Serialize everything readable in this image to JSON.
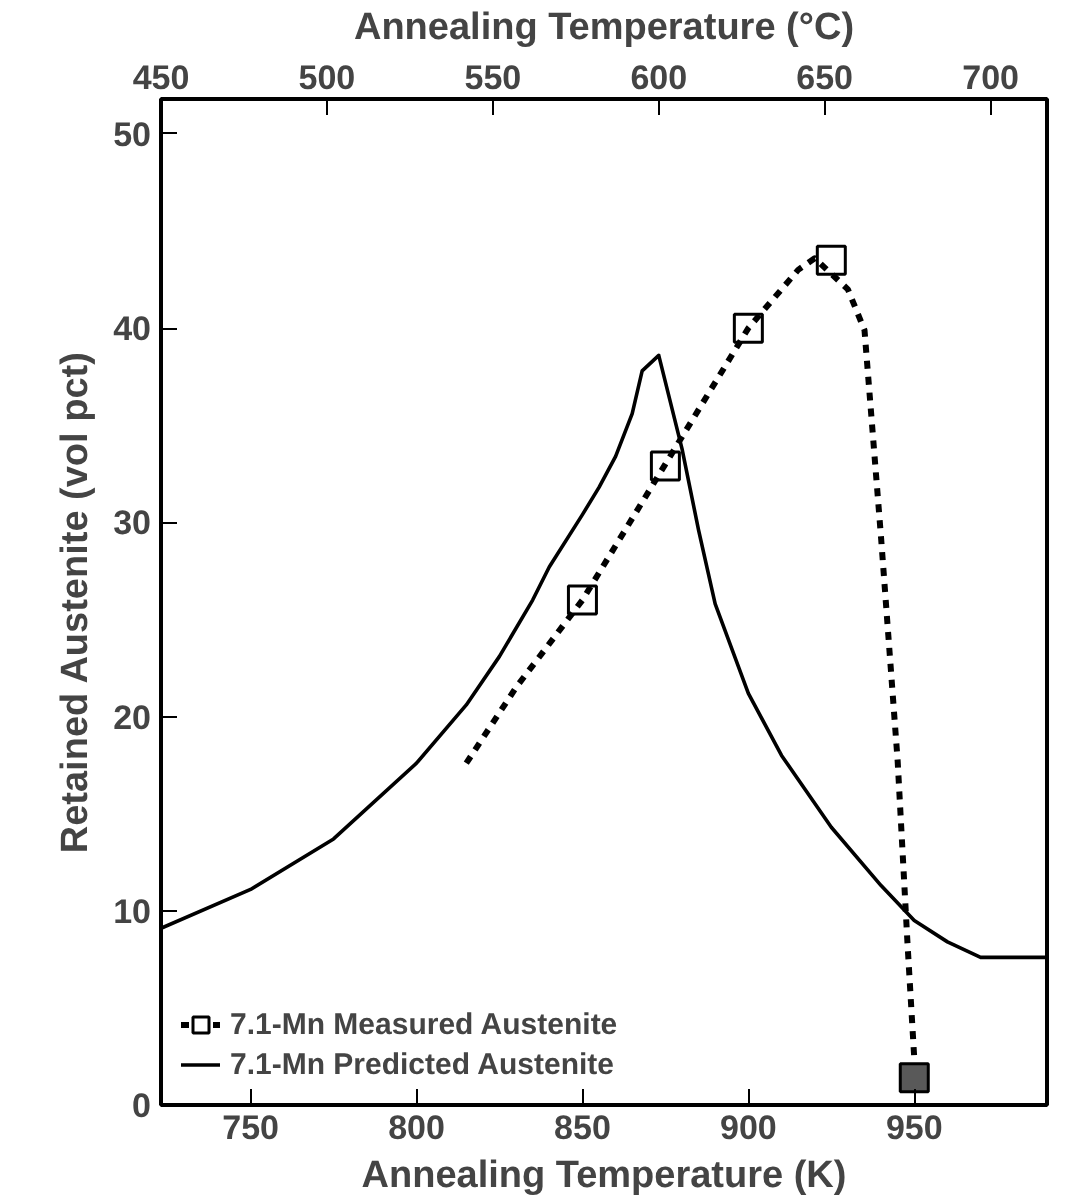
{
  "chart_data": {
    "type": "line",
    "xlabel": "Annealing Temperature (K)",
    "ylabel": "Retained Austenite (vol pct)",
    "x2label": "Annealing Temperature (°C)",
    "xlim": [
      723,
      990
    ],
    "xticks": [
      750,
      800,
      850,
      900,
      950
    ],
    "x2lim": [
      450,
      717
    ],
    "x2ticks": [
      450,
      500,
      550,
      600,
      650,
      700
    ],
    "ylim": [
      0,
      51.8
    ],
    "yticks": [
      0,
      10,
      20,
      30,
      40,
      50
    ],
    "grid": false,
    "legend": "bottom left",
    "series": [
      {
        "name": "7.1-Mn Measured Austenite",
        "type": "scatter",
        "marker": "square",
        "x": [
          850,
          875,
          900,
          925,
          950
        ],
        "values": [
          26.0,
          32.9,
          40.0,
          43.5,
          1.4
        ],
        "colors": [
          "#ffffff",
          "#ffffff",
          "#ffffff",
          "#ffffff",
          "#595959"
        ]
      },
      {
        "line_style": "dotted",
        "color": "#000000",
        "x": [
          815,
          830,
          850,
          875,
          900,
          915,
          920,
          930,
          935,
          940,
          945,
          948,
          950
        ],
        "values": [
          17.6,
          21.5,
          26.0,
          33.0,
          40.0,
          43.0,
          43.6,
          42.0,
          39.9,
          29.2,
          17.7,
          8.2,
          2.4
        ]
      },
      {
        "name": "7.1-Mn Predicted Austenite",
        "line_style": "solid",
        "color": "#000000",
        "x": [
          723,
          750,
          775,
          800,
          815,
          825,
          835,
          840,
          850,
          855,
          860,
          865,
          868,
          873,
          880,
          885,
          890,
          900,
          910,
          925,
          940,
          950,
          960,
          970,
          990
        ],
        "values": [
          9.1,
          11.1,
          13.7,
          17.6,
          20.6,
          23.1,
          26.0,
          27.7,
          30.4,
          31.8,
          33.4,
          35.6,
          37.8,
          38.6,
          33.8,
          29.6,
          25.8,
          21.2,
          18.0,
          14.3,
          11.3,
          9.5,
          8.4,
          7.6,
          7.6
        ]
      }
    ]
  }
}
